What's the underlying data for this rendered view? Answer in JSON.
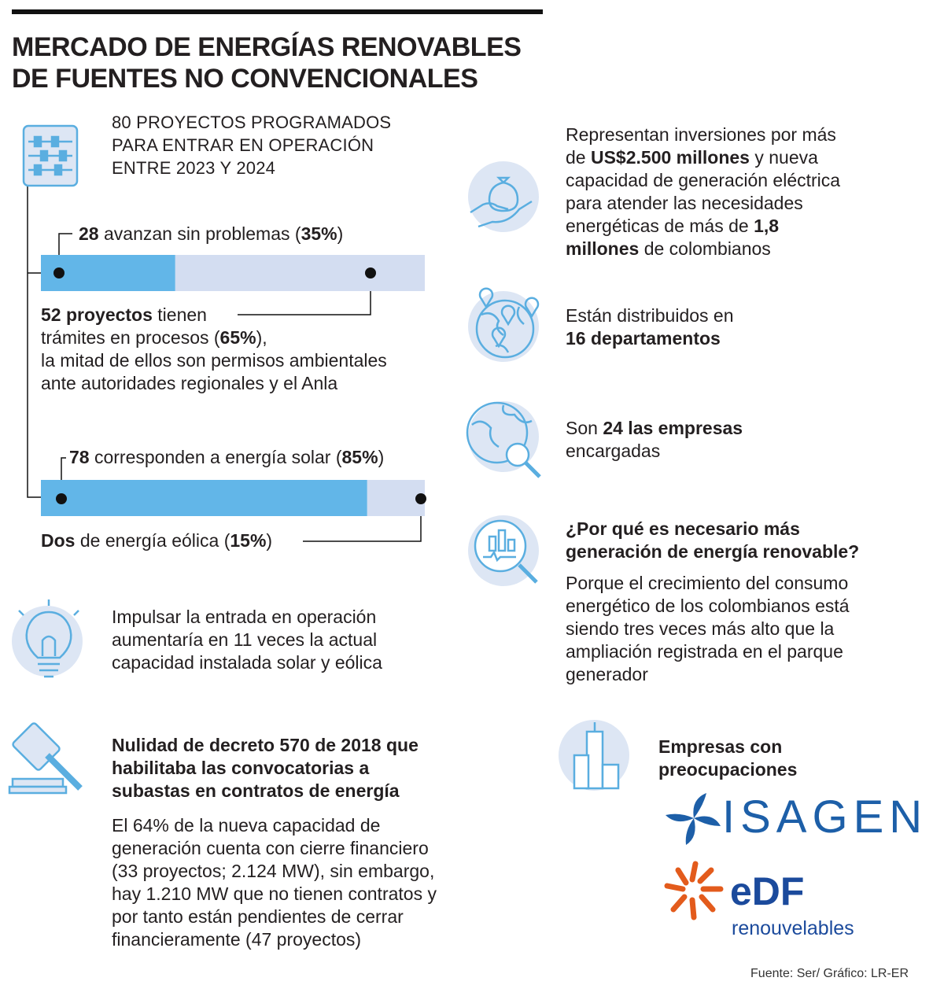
{
  "header": {
    "title": [
      "MERCADO DE ENERGÍAS RENOVABLES",
      "DE FUENTES NO CONVENCIONALES"
    ]
  },
  "projects": {
    "intro": [
      "80 PROYECTOS PROGRAMADOS",
      "PARA ENTRAR EN OPERACIÓN",
      "ENTRE 2023 Y 2024"
    ],
    "status": {
      "top": [
        [
          {
            "strong": "28"
          },
          " avanzan sin problemas (",
          {
            "strong": true,
            "label": "35%",
            "value": 35
          },
          ")"
        ]
      ],
      "bottom": [
        [
          {
            "strong": "52 proyectos"
          },
          " tienen"
        ],
        [
          "trámites en procesos (",
          {
            "strong": true,
            "label": "65%",
            "value": 65
          },
          "),"
        ],
        [
          "la mitad de ellos son permisos ambientales"
        ],
        [
          "ante autoridades regionales y el Anla"
        ]
      ]
    },
    "source": {
      "top": [
        [
          {
            "strong": "78"
          },
          " corresponden a energía solar (",
          {
            "strong": true,
            "label": "85%",
            "value": 85
          },
          ")"
        ]
      ],
      "bottom": [
        [
          {
            "strong": "Dos"
          },
          " de energía eólica (",
          {
            "strong": true,
            "label": "15%",
            "value": 15
          },
          ")"
        ]
      ]
    }
  },
  "impulse": [
    "Impulsar la entrada en operación",
    "aumentaría en 11 veces la actual",
    "capacidad instalada solar y eólica"
  ],
  "decree": {
    "heading": [
      "Nulidad de decreto 570 de 2018 que",
      "habilitaba las convocatorias a",
      "subastas en contratos de energía"
    ],
    "body": [
      "El 64% de la nueva capacidad de",
      "generación cuenta con cierre financiero",
      "(33 proyectos; 2.124 MW), sin embargo,",
      "hay 1.210 MW que no tienen contratos y",
      "por tanto están pendientes de cerrar",
      "financieramente (47 proyectos)"
    ]
  },
  "investment": [
    [
      "Representan inversiones por más"
    ],
    [
      "de ",
      {
        "strong": "US$2.500 millones"
      },
      " y nueva"
    ],
    [
      "capacidad de generación eléctrica"
    ],
    [
      "para atender las necesidades"
    ],
    [
      "energéticas de más de ",
      {
        "strong": "1,8"
      }
    ],
    [
      {
        "strong": "millones"
      },
      " de colombianos"
    ]
  ],
  "distribution": [
    [
      "Están distribuidos en"
    ],
    [
      {
        "strong": "16 departamentos"
      }
    ]
  ],
  "companies_count": [
    [
      "Son ",
      {
        "strong": "24 las empresas"
      }
    ],
    [
      "encargadas"
    ]
  ],
  "why": {
    "heading": [
      "¿Por qué es necesario más",
      "generación de energía renovable?"
    ],
    "body": [
      "Porque el crecimiento del consumo",
      "energético de los colombianos está",
      "siendo tres veces más alto que la",
      "ampliación registrada en el parque",
      "generador"
    ]
  },
  "companies": {
    "heading": [
      "Empresas con",
      "preocupaciones"
    ],
    "isagen": "ISAGEN",
    "edf": {
      "mark": "eDF",
      "tagline": "renouvelables"
    }
  },
  "footer": "Fuente: Ser/ Gráfico: LR-ER"
}
